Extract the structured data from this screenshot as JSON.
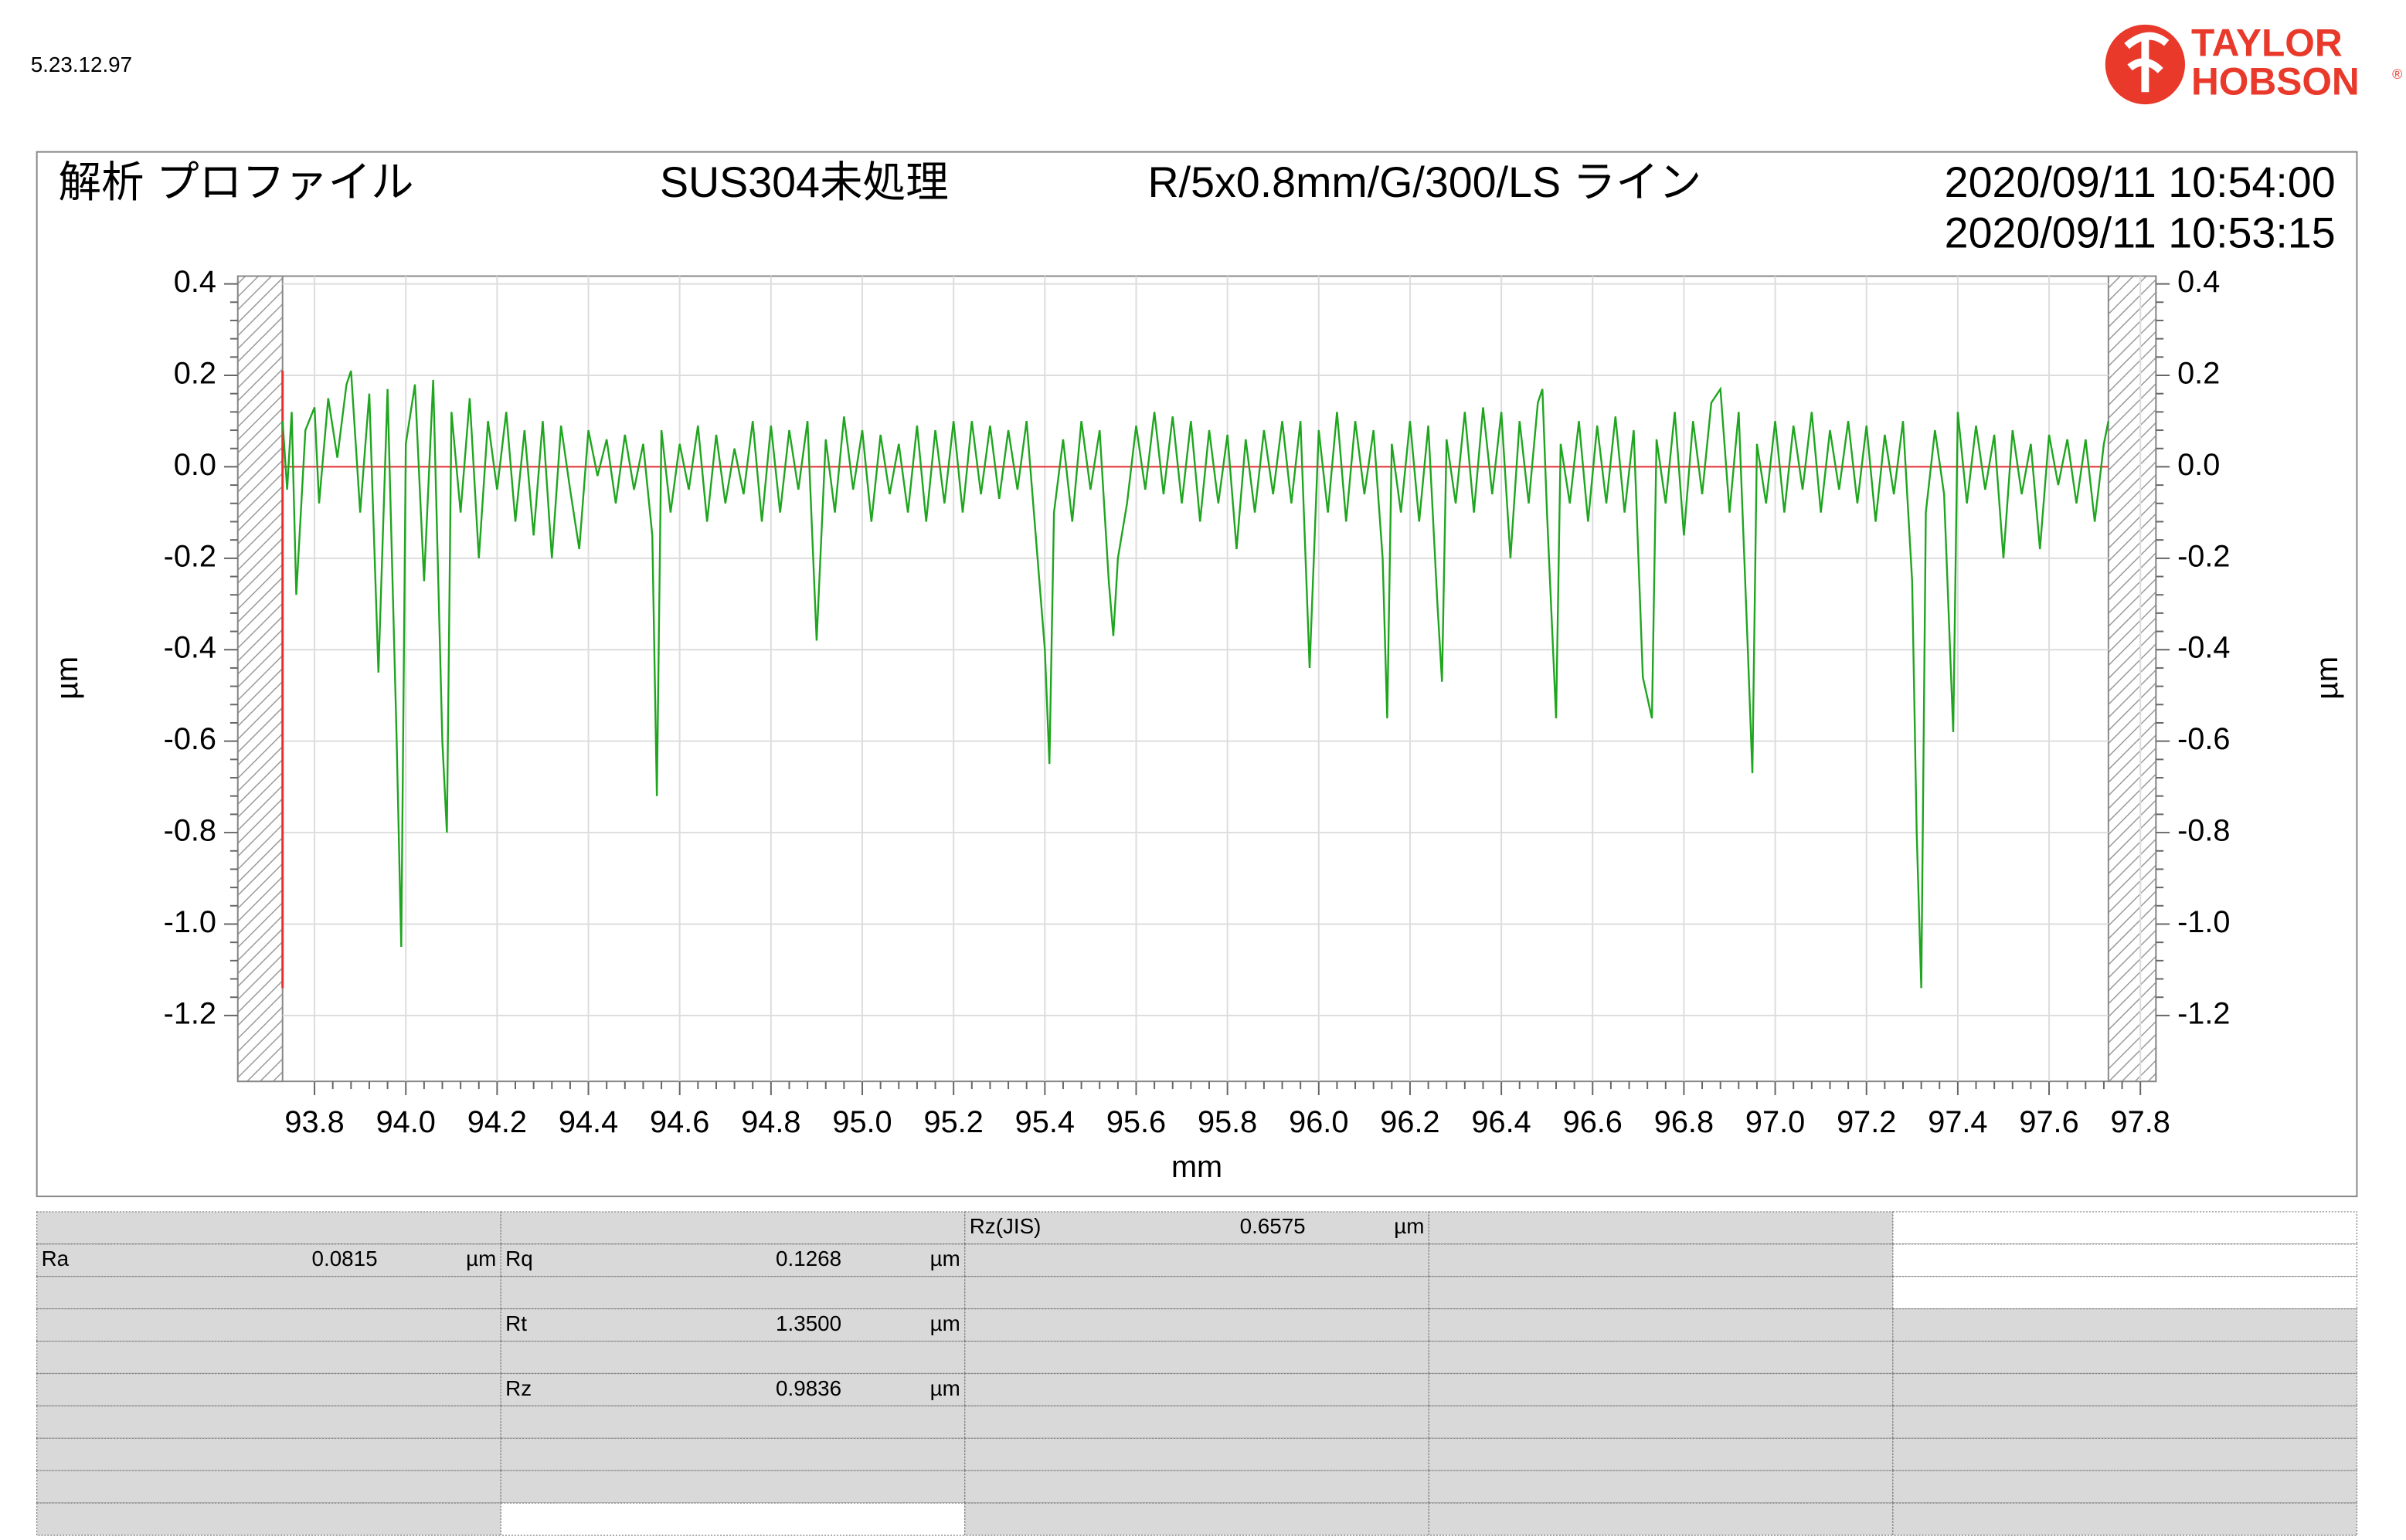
{
  "header": {
    "version": "5.23.12.97",
    "logo": [
      "TAYLOR",
      "HOBSON"
    ],
    "registered": "®"
  },
  "chart_data": {
    "type": "line",
    "title": "解析 プロファイル",
    "annotations": [
      "SUS304未処理",
      "R/5x0.8mm/G/300/LS ライン",
      "2020/09/11 10:54:00",
      "2020/09/11 10:53:15"
    ],
    "xlabel": "mm",
    "ylabel": "µm",
    "xlim": [
      93.632,
      97.834
    ],
    "ylim": [
      -1.344,
      0.417
    ],
    "xticks": [
      {
        "value": 93.8,
        "label": "93.8"
      },
      {
        "value": 94,
        "label": "94.0"
      },
      {
        "value": 94.2,
        "label": "94.2"
      },
      {
        "value": 94.4,
        "label": "94.4"
      },
      {
        "value": 94.6,
        "label": "94.6"
      },
      {
        "value": 94.8,
        "label": "94.8"
      },
      {
        "value": 95,
        "label": "95.0"
      },
      {
        "value": 95.2,
        "label": "95.2"
      },
      {
        "value": 95.4,
        "label": "95.4"
      },
      {
        "value": 95.6,
        "label": "95.6"
      },
      {
        "value": 95.8,
        "label": "95.8"
      },
      {
        "value": 96,
        "label": "96.0"
      },
      {
        "value": 96.2,
        "label": "96.2"
      },
      {
        "value": 96.4,
        "label": "96.4"
      },
      {
        "value": 96.6,
        "label": "96.6"
      },
      {
        "value": 96.8,
        "label": "96.8"
      },
      {
        "value": 97,
        "label": "97.0"
      },
      {
        "value": 97.2,
        "label": "97.2"
      },
      {
        "value": 97.4,
        "label": "97.4"
      },
      {
        "value": 97.6,
        "label": "97.6"
      },
      {
        "value": 97.8,
        "label": "97.8"
      }
    ],
    "yticks": [
      0.4,
      0.2,
      {
        "value": 0,
        "label": "0.0"
      },
      -0.2,
      -0.4,
      -0.6,
      -0.8,
      {
        "value": -1,
        "label": "-1.0"
      },
      -1.2
    ],
    "grid": true,
    "x": [
      93.73,
      93.74,
      93.75,
      93.76,
      93.78,
      93.8,
      93.81,
      93.83,
      93.85,
      93.87,
      93.88,
      93.9,
      93.92,
      93.94,
      93.96,
      93.98,
      93.99,
      94.0,
      94.02,
      94.04,
      94.06,
      94.08,
      94.09,
      94.1,
      94.12,
      94.14,
      94.16,
      94.18,
      94.2,
      94.22,
      94.24,
      94.26,
      94.28,
      94.3,
      94.32,
      94.34,
      94.36,
      94.38,
      94.4,
      94.42,
      94.44,
      94.46,
      94.48,
      94.5,
      94.52,
      94.54,
      94.55,
      94.56,
      94.58,
      94.6,
      94.62,
      94.64,
      94.66,
      94.68,
      94.7,
      94.72,
      94.74,
      94.76,
      94.78,
      94.8,
      94.82,
      94.84,
      94.86,
      94.88,
      94.9,
      94.92,
      94.94,
      94.96,
      94.98,
      95.0,
      95.02,
      95.04,
      95.06,
      95.08,
      95.1,
      95.12,
      95.14,
      95.16,
      95.18,
      95.2,
      95.22,
      95.24,
      95.26,
      95.28,
      95.3,
      95.32,
      95.34,
      95.36,
      95.38,
      95.4,
      95.41,
      95.42,
      95.44,
      95.46,
      95.48,
      95.5,
      95.52,
      95.54,
      95.55,
      95.56,
      95.58,
      95.6,
      95.62,
      95.64,
      95.66,
      95.68,
      95.7,
      95.72,
      95.74,
      95.76,
      95.78,
      95.8,
      95.82,
      95.84,
      95.86,
      95.88,
      95.9,
      95.92,
      95.94,
      95.96,
      95.98,
      96.0,
      96.02,
      96.04,
      96.06,
      96.08,
      96.1,
      96.12,
      96.14,
      96.15,
      96.16,
      96.18,
      96.2,
      96.22,
      96.24,
      96.26,
      96.27,
      96.28,
      96.3,
      96.32,
      96.34,
      96.36,
      96.38,
      96.4,
      96.42,
      96.44,
      96.46,
      96.48,
      96.49,
      96.5,
      96.52,
      96.53,
      96.55,
      96.57,
      96.59,
      96.61,
      96.63,
      96.65,
      96.67,
      96.69,
      96.71,
      96.73,
      96.74,
      96.76,
      96.78,
      96.8,
      96.82,
      96.84,
      96.86,
      96.88,
      96.9,
      96.92,
      96.94,
      96.95,
      96.96,
      96.98,
      97.0,
      97.02,
      97.04,
      97.06,
      97.08,
      97.1,
      97.12,
      97.14,
      97.16,
      97.18,
      97.2,
      97.22,
      97.24,
      97.26,
      97.28,
      97.3,
      97.31,
      97.32,
      97.33,
      97.35,
      97.37,
      97.39,
      97.4,
      97.42,
      97.44,
      97.46,
      97.48,
      97.5,
      97.52,
      97.54,
      97.56,
      97.58,
      97.6,
      97.62,
      97.64,
      97.66,
      97.68,
      97.7,
      97.72,
      97.73
    ],
    "series": [
      {
        "color": "#1fa51f",
        "values": [
          0.1,
          -0.05,
          0.12,
          -0.28,
          0.08,
          0.13,
          -0.08,
          0.15,
          0.02,
          0.18,
          0.21,
          -0.1,
          0.16,
          -0.45,
          0.17,
          -0.6,
          -1.05,
          0.05,
          0.18,
          -0.25,
          0.19,
          -0.6,
          -0.8,
          0.12,
          -0.1,
          0.15,
          -0.2,
          0.1,
          -0.05,
          0.12,
          -0.12,
          0.08,
          -0.15,
          0.1,
          -0.2,
          0.09,
          -0.05,
          -0.18,
          0.08,
          -0.02,
          0.06,
          -0.08,
          0.07,
          -0.05,
          0.05,
          -0.15,
          -0.72,
          0.08,
          -0.1,
          0.05,
          -0.05,
          0.09,
          -0.12,
          0.07,
          -0.08,
          0.04,
          -0.06,
          0.1,
          -0.12,
          0.09,
          -0.1,
          0.08,
          -0.05,
          0.1,
          -0.38,
          0.06,
          -0.1,
          0.11,
          -0.05,
          0.08,
          -0.12,
          0.07,
          -0.06,
          0.05,
          -0.1,
          0.09,
          -0.12,
          0.08,
          -0.08,
          0.1,
          -0.1,
          0.1,
          -0.06,
          0.09,
          -0.07,
          0.08,
          -0.05,
          0.1,
          -0.15,
          -0.4,
          -0.65,
          -0.1,
          0.06,
          -0.12,
          0.1,
          -0.05,
          0.08,
          -0.25,
          -0.37,
          -0.2,
          -0.08,
          0.09,
          -0.05,
          0.12,
          -0.06,
          0.11,
          -0.08,
          0.1,
          -0.12,
          0.08,
          -0.08,
          0.07,
          -0.18,
          0.06,
          -0.1,
          0.08,
          -0.06,
          0.1,
          -0.08,
          0.1,
          -0.44,
          0.08,
          -0.1,
          0.12,
          -0.12,
          0.1,
          -0.06,
          0.08,
          -0.2,
          -0.55,
          0.05,
          -0.1,
          0.1,
          -0.12,
          0.09,
          -0.3,
          -0.47,
          0.06,
          -0.08,
          0.12,
          -0.1,
          0.13,
          -0.06,
          0.12,
          -0.2,
          0.1,
          -0.08,
          0.14,
          0.17,
          -0.1,
          -0.55,
          0.05,
          -0.08,
          0.1,
          -0.12,
          0.09,
          -0.08,
          0.11,
          -0.1,
          0.08,
          -0.46,
          -0.55,
          0.06,
          -0.08,
          0.12,
          -0.15,
          0.1,
          -0.06,
          0.14,
          0.17,
          -0.1,
          0.12,
          -0.4,
          -0.67,
          0.05,
          -0.08,
          0.1,
          -0.1,
          0.09,
          -0.05,
          0.12,
          -0.1,
          0.08,
          -0.05,
          0.1,
          -0.08,
          0.09,
          -0.12,
          0.07,
          -0.06,
          0.1,
          -0.25,
          -0.8,
          -1.14,
          -0.1,
          0.08,
          -0.06,
          -0.58,
          0.12,
          -0.08,
          0.09,
          -0.05,
          0.07,
          -0.2,
          0.08,
          -0.06,
          0.05,
          -0.18,
          0.07,
          -0.04,
          0.06,
          -0.08,
          0.06,
          -0.12,
          0.05,
          0.1
        ]
      }
    ]
  },
  "table": {
    "rows": [
      [
        null,
        null,
        {
          "label": "Rz(JIS)",
          "value": "0.6575",
          "unit": "µm"
        },
        null,
        null
      ],
      [
        {
          "label": "Ra",
          "value": "0.0815",
          "unit": "µm"
        },
        {
          "label": "Rq",
          "value": "0.1268",
          "unit": "µm"
        },
        null,
        null,
        null
      ],
      [
        null,
        null,
        null,
        null,
        null
      ],
      [
        null,
        {
          "label": "Rt",
          "value": "1.3500",
          "unit": "µm"
        },
        null,
        null,
        null
      ],
      [
        null,
        null,
        null,
        null,
        null
      ],
      [
        null,
        {
          "label": "Rz",
          "value": "0.9836",
          "unit": "µm"
        },
        null,
        null,
        null
      ],
      [
        null,
        null,
        null,
        null,
        null
      ],
      [
        null,
        null,
        null,
        null,
        null
      ],
      [
        null,
        null,
        null,
        null,
        null
      ],
      [
        null,
        null,
        null,
        null,
        null
      ]
    ]
  }
}
